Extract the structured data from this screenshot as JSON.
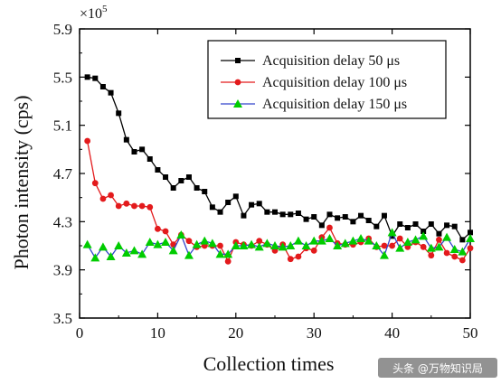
{
  "chart_data": {
    "type": "line",
    "title": "",
    "xlabel": "Collection times",
    "ylabel": "Photon intensity (cps)",
    "y_multiplier": "×10",
    "y_multiplier_exp": "5",
    "xlim": [
      0,
      50
    ],
    "ylim": [
      3.5,
      5.9
    ],
    "xticks": [
      0,
      10,
      20,
      30,
      40,
      50
    ],
    "yticks": [
      3.5,
      3.9,
      4.3,
      4.7,
      5.1,
      5.5,
      5.9
    ],
    "xtick_labels": [
      "0",
      "10",
      "20",
      "30",
      "40",
      "50"
    ],
    "ytick_labels": [
      "3.5",
      "3.9",
      "4.3",
      "4.7",
      "5.1",
      "5.5",
      "5.9"
    ],
    "grid": false,
    "legend_position": "top-right",
    "x": [
      1,
      2,
      3,
      4,
      5,
      6,
      7,
      8,
      9,
      10,
      11,
      12,
      13,
      14,
      15,
      16,
      17,
      18,
      19,
      20,
      21,
      22,
      23,
      24,
      25,
      26,
      27,
      28,
      29,
      30,
      31,
      32,
      33,
      34,
      35,
      36,
      37,
      38,
      39,
      40,
      41,
      42,
      43,
      44,
      45,
      46,
      47,
      48,
      49,
      50
    ],
    "series": [
      {
        "name": "Acquisition delay  50 μs",
        "color": "#000000",
        "marker": "square",
        "values": [
          5.5,
          5.49,
          5.42,
          5.37,
          5.2,
          4.98,
          4.88,
          4.9,
          4.82,
          4.73,
          4.67,
          4.58,
          4.64,
          4.67,
          4.58,
          4.55,
          4.42,
          4.38,
          4.46,
          4.51,
          4.35,
          4.44,
          4.45,
          4.38,
          4.38,
          4.36,
          4.36,
          4.37,
          4.32,
          4.34,
          4.27,
          4.36,
          4.33,
          4.34,
          4.3,
          4.35,
          4.31,
          4.26,
          4.35,
          4.18,
          4.28,
          4.25,
          4.28,
          4.22,
          4.28,
          4.2,
          4.27,
          4.26,
          4.15,
          4.21
        ]
      },
      {
        "name": "Acquisition delay  100 μs",
        "color": "#e31a1c",
        "marker": "circle",
        "values": [
          4.97,
          4.62,
          4.49,
          4.52,
          4.43,
          4.45,
          4.43,
          4.43,
          4.42,
          4.24,
          4.22,
          4.11,
          4.19,
          4.14,
          4.09,
          4.1,
          4.1,
          4.1,
          3.97,
          4.13,
          4.11,
          4.1,
          4.14,
          4.11,
          4.06,
          4.11,
          3.99,
          4.01,
          4.08,
          4.06,
          4.17,
          4.25,
          4.12,
          4.11,
          4.11,
          4.13,
          4.16,
          4.09,
          4.1,
          4.1,
          4.16,
          4.09,
          4.13,
          4.09,
          4.02,
          4.15,
          4.04,
          4.01,
          3.98,
          4.08
        ]
      },
      {
        "name": "Acquisition delay  150 μs",
        "color": "#00cc00",
        "line_color": "#3344cc",
        "marker": "triangle",
        "values": [
          4.11,
          4.0,
          4.09,
          4.01,
          4.1,
          4.04,
          4.06,
          4.03,
          4.13,
          4.11,
          4.13,
          4.06,
          4.19,
          4.02,
          4.11,
          4.14,
          4.12,
          4.03,
          4.03,
          4.1,
          4.1,
          4.11,
          4.09,
          4.12,
          4.1,
          4.09,
          4.1,
          4.14,
          4.1,
          4.14,
          4.14,
          4.16,
          4.1,
          4.12,
          4.14,
          4.16,
          4.14,
          4.1,
          4.02,
          4.21,
          4.08,
          4.13,
          4.15,
          4.18,
          4.08,
          4.09,
          4.17,
          4.07,
          4.05,
          4.16
        ]
      }
    ]
  },
  "watermark": "头条 @万物知识局"
}
